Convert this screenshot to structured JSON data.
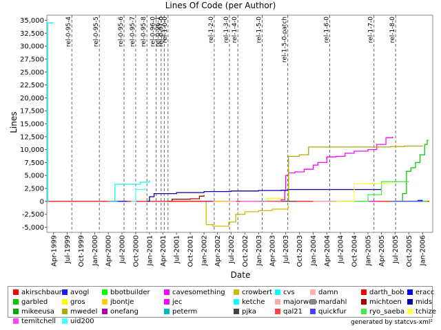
{
  "chart_data": {
    "type": "line",
    "title": "Lines Of Code (per Author)",
    "xlabel": "Date",
    "ylabel": "Lines",
    "ylim": [
      -6000,
      36000
    ],
    "xlim": [
      "1999-02-15",
      "2006-03-10"
    ],
    "y_ticks": [
      -5000,
      -2500,
      0,
      2500,
      5000,
      7500,
      10000,
      12500,
      15000,
      17500,
      20000,
      22500,
      25000,
      27500,
      30000,
      32500,
      35000
    ],
    "y_tick_labels": [
      "-5,000",
      "-2,500",
      "0",
      "2,500",
      "5,000",
      "7,500",
      "10,000",
      "12,500",
      "15,000",
      "17,500",
      "20,000",
      "22,500",
      "25,000",
      "27,500",
      "30,000",
      "32,500",
      "35,000"
    ],
    "x_ticks": [
      "1999-04-01",
      "1999-07-01",
      "1999-10-01",
      "2000-01-01",
      "2000-04-01",
      "2000-07-01",
      "2000-10-01",
      "2001-01-01",
      "2001-04-01",
      "2001-07-01",
      "2001-10-01",
      "2002-01-01",
      "2002-04-01",
      "2002-07-01",
      "2002-10-01",
      "2003-01-01",
      "2003-04-01",
      "2003-07-01",
      "2003-10-01",
      "2004-01-01",
      "2004-04-01",
      "2004-07-01",
      "2004-10-01",
      "2005-01-01",
      "2005-04-01",
      "2005-07-01",
      "2005-10-01",
      "2006-01-01"
    ],
    "x_tick_labels": [
      "Apr-1999",
      "Jul-1999",
      "Oct-1999",
      "Jan-2000",
      "Apr-2000",
      "Jul-2000",
      "Oct-2000",
      "Jan-2001",
      "Apr-2001",
      "Jul-2001",
      "Oct-2001",
      "Jan-2002",
      "Apr-2002",
      "Jul-2002",
      "Oct-2002",
      "Jan-2003",
      "Apr-2003",
      "Jul-2003",
      "Oct-2003",
      "Jan-2004",
      "Apr-2004",
      "Jul-2004",
      "Oct-2004",
      "Jan-2005",
      "Apr-2005",
      "Jul-2005",
      "Oct-2005",
      "Jan-2006"
    ],
    "releases": [
      {
        "date": "1999-08-01",
        "label": "rel-0-95-4"
      },
      {
        "date": "2000-02-01",
        "label": "rel-0-95-5"
      },
      {
        "date": "2000-07-15",
        "label": "rel-0-95-6"
      },
      {
        "date": "2000-10-01",
        "label": "rel-0-95-7"
      },
      {
        "date": "2000-12-15",
        "label": "rel-0-95-8"
      },
      {
        "date": "2001-02-15",
        "label": "rel-0-96-0"
      },
      {
        "date": "2001-03-20",
        "label": "rel-0-96-1"
      },
      {
        "date": "2001-04-10",
        "label": "rel-0-97-0"
      },
      {
        "date": "2001-05-05",
        "label": "rel-1-0-0"
      },
      {
        "date": "2002-03-10",
        "label": "rel-1-2-0"
      },
      {
        "date": "2002-06-20",
        "label": "rel-1-3-0"
      },
      {
        "date": "2002-08-15",
        "label": "rel-1-4-0"
      },
      {
        "date": "2003-01-25",
        "label": "rel-1-5-0"
      },
      {
        "date": "2003-07-15",
        "label": "rel-1-5-0-patch"
      },
      {
        "date": "2004-04-20",
        "label": "rel-1-6-0"
      },
      {
        "date": "2005-02-10",
        "label": "rel-1-7-0"
      },
      {
        "date": "2005-07-05",
        "label": "rel-1-8-0"
      }
    ],
    "grid": true,
    "legend_position": "bottom",
    "series": [
      {
        "name": "akirschbaum",
        "color": "#ff0000",
        "points": [
          [
            "1999-02-15",
            0
          ],
          [
            "2006-02-15",
            0
          ]
        ]
      },
      {
        "name": "avogl",
        "color": "#1a1aff",
        "points": [
          [
            "2005-08-01",
            0
          ],
          [
            "2005-12-01",
            200
          ],
          [
            "2006-01-01",
            200
          ]
        ]
      },
      {
        "name": "bbotbuilder",
        "color": "#00ff00",
        "points": [
          [
            "2005-06-01",
            0
          ],
          [
            "2006-02-01",
            0
          ]
        ]
      },
      {
        "name": "cavesomething",
        "color": "#ff00ff",
        "points": [
          [
            "2005-01-01",
            0
          ],
          [
            "2005-03-01",
            50
          ]
        ]
      },
      {
        "name": "crowbert",
        "color": "#ccbb00",
        "points": [
          [
            "2002-01-01",
            0
          ],
          [
            "2002-01-15",
            -4500
          ],
          [
            "2002-03-01",
            -4800
          ],
          [
            "2002-06-01",
            -4800
          ],
          [
            "2002-06-15",
            -4000
          ],
          [
            "2002-08-01",
            -2500
          ],
          [
            "2002-10-01",
            -2000
          ],
          [
            "2003-01-01",
            -1800
          ],
          [
            "2003-04-01",
            -1500
          ],
          [
            "2003-07-15",
            -1200
          ],
          [
            "2003-07-20",
            -900
          ]
        ]
      },
      {
        "name": "cvs",
        "color": "#00ffff",
        "points": [
          [
            "1999-02-20",
            0
          ],
          [
            "1999-02-22",
            34500
          ],
          [
            "1999-04-01",
            34500
          ]
        ]
      },
      {
        "name": "damn",
        "color": "#ffb0b0",
        "points": [
          [
            "2002-06-01",
            0
          ],
          [
            "2002-08-01",
            100
          ]
        ]
      },
      {
        "name": "darth_bob",
        "color": "#ff0000",
        "points": [
          [
            "2001-06-01",
            0
          ],
          [
            "2002-01-01",
            50
          ]
        ]
      },
      {
        "name": "eracc",
        "color": "#0000ff",
        "points": [
          [
            "2000-06-01",
            0
          ],
          [
            "2000-08-01",
            100
          ]
        ]
      },
      {
        "name": "garbled",
        "color": "#00cc00",
        "points": [
          [
            "2005-08-01",
            0
          ],
          [
            "2005-08-20",
            1500
          ],
          [
            "2005-09-15",
            5800
          ],
          [
            "2005-10-15",
            6500
          ],
          [
            "2005-11-15",
            7500
          ],
          [
            "2005-12-15",
            9000
          ],
          [
            "2006-01-15",
            11000
          ],
          [
            "2006-02-01",
            11800
          ],
          [
            "2006-02-10",
            11800
          ]
        ]
      },
      {
        "name": "gros",
        "color": "#ffff00",
        "points": [
          [
            "2002-09-01",
            0
          ],
          [
            "2003-03-01",
            600
          ],
          [
            "2003-07-01",
            600
          ]
        ]
      },
      {
        "name": "jbontje",
        "color": "#ffcc00",
        "points": [
          [
            "2002-01-01",
            0
          ],
          [
            "2002-06-01",
            0
          ]
        ]
      },
      {
        "name": "jec",
        "color": "#ff00ff",
        "points": [
          [
            "2003-01-01",
            0
          ],
          [
            "2003-06-01",
            300
          ],
          [
            "2003-06-25",
            2000
          ],
          [
            "2003-07-01",
            5000
          ],
          [
            "2003-07-20",
            5500
          ],
          [
            "2003-09-01",
            5700
          ],
          [
            "2003-11-01",
            6200
          ],
          [
            "2004-01-01",
            7000
          ],
          [
            "2004-02-01",
            7500
          ],
          [
            "2004-04-01",
            8600
          ],
          [
            "2004-06-01",
            8700
          ],
          [
            "2004-08-01",
            9300
          ],
          [
            "2004-10-01",
            9700
          ],
          [
            "2005-01-01",
            10000
          ],
          [
            "2005-03-01",
            11000
          ],
          [
            "2005-05-01",
            12300
          ],
          [
            "2005-06-15",
            12500
          ]
        ]
      },
      {
        "name": "ketche",
        "color": "#00ffff",
        "points": [
          [
            "2000-05-01",
            0
          ],
          [
            "2000-05-15",
            3300
          ],
          [
            "2000-09-01",
            3300
          ],
          [
            "2000-10-01",
            3300
          ],
          [
            "2000-11-01",
            3700
          ],
          [
            "2001-01-01",
            4100
          ]
        ]
      },
      {
        "name": "majorwoo",
        "color": "#ffaaaa",
        "points": [
          [
            "2004-01-01",
            0
          ],
          [
            "2004-06-01",
            50
          ]
        ]
      },
      {
        "name": "mardahl",
        "color": "#888888",
        "points": [
          [
            "2003-01-01",
            0
          ],
          [
            "2003-06-01",
            100
          ]
        ]
      },
      {
        "name": "michtoen",
        "color": "#aa0000",
        "points": [
          [
            "2001-05-01",
            0
          ],
          [
            "2001-06-01",
            400
          ],
          [
            "2001-10-01",
            500
          ],
          [
            "2001-12-01",
            1000
          ],
          [
            "2002-01-01",
            1200
          ]
        ]
      },
      {
        "name": "mids",
        "color": "#0000aa",
        "points": [
          [
            "2000-12-15",
            0
          ],
          [
            "2001-01-01",
            900
          ],
          [
            "2001-02-01",
            1500
          ],
          [
            "2001-07-01",
            1700
          ],
          [
            "2002-01-01",
            1900
          ],
          [
            "2002-07-01",
            2000
          ],
          [
            "2003-01-01",
            2100
          ],
          [
            "2003-06-01",
            2150
          ],
          [
            "2003-07-15",
            2300
          ],
          [
            "2004-06-01",
            2300
          ],
          [
            "2005-04-01",
            2300
          ]
        ]
      },
      {
        "name": "mikeeusa",
        "color": "#00aa00",
        "points": [
          [
            "2004-06-01",
            0
          ],
          [
            "2005-01-01",
            50
          ]
        ]
      },
      {
        "name": "mwedel",
        "color": "#aaaa00",
        "points": [
          [
            "2003-07-15",
            0
          ],
          [
            "2003-07-20",
            8700
          ],
          [
            "2003-10-01",
            9000
          ],
          [
            "2003-12-01",
            10500
          ],
          [
            "2004-06-01",
            10500
          ],
          [
            "2005-01-01",
            10500
          ],
          [
            "2005-06-01",
            10600
          ],
          [
            "2005-09-01",
            10700
          ],
          [
            "2006-01-01",
            10800
          ]
        ]
      },
      {
        "name": "onefang",
        "color": "#aa00aa",
        "points": [
          [
            "2002-01-01",
            0
          ],
          [
            "2002-03-01",
            50
          ]
        ]
      },
      {
        "name": "peterm",
        "color": "#00bbbb",
        "points": [
          [
            "2000-04-01",
            0
          ],
          [
            "2000-06-01",
            100
          ]
        ]
      },
      {
        "name": "pjka",
        "color": "#444444",
        "points": [
          [
            "2003-06-01",
            0
          ],
          [
            "2003-09-01",
            100
          ]
        ]
      },
      {
        "name": "qal21",
        "color": "#ff4444",
        "points": [
          [
            "2003-03-01",
            0
          ],
          [
            "2003-06-01",
            50
          ]
        ]
      },
      {
        "name": "quickfur",
        "color": "#4444ff",
        "points": [
          [
            "2005-06-01",
            0
          ],
          [
            "2006-01-01",
            150
          ]
        ]
      },
      {
        "name": "ryo_saeba",
        "color": "#44ee44",
        "points": [
          [
            "2004-09-01",
            0
          ],
          [
            "2005-01-01",
            1300
          ],
          [
            "2005-04-01",
            3800
          ],
          [
            "2005-10-01",
            3800
          ]
        ]
      },
      {
        "name": "tchize",
        "color": "#ffff44",
        "points": [
          [
            "2004-06-01",
            0
          ],
          [
            "2004-10-01",
            3400
          ],
          [
            "2005-06-01",
            3400
          ]
        ]
      },
      {
        "name": "temitchell",
        "color": "#ff44ff",
        "points": [
          [
            "2002-09-01",
            0
          ],
          [
            "2003-01-01",
            0
          ]
        ]
      },
      {
        "name": "uid200",
        "color": "#44ffff",
        "points": [
          [
            "2000-09-01",
            0
          ],
          [
            "2000-10-01",
            2300
          ],
          [
            "2000-12-01",
            2600
          ]
        ]
      }
    ]
  },
  "legend_items": [
    {
      "name": "akirschbaum",
      "color": "#ff0000"
    },
    {
      "name": "avogl",
      "color": "#1a1aff"
    },
    {
      "name": "bbotbuilder",
      "color": "#00ff00"
    },
    {
      "name": "cavesomething",
      "color": "#ff00ff"
    },
    {
      "name": "crowbert",
      "color": "#ccbb00"
    },
    {
      "name": "cvs",
      "color": "#00ffff"
    },
    {
      "name": "damn",
      "color": "#ffb0b0"
    },
    {
      "name": "darth_bob",
      "color": "#ff0000"
    },
    {
      "name": "eracc",
      "color": "#0000ff"
    },
    {
      "name": "garbled",
      "color": "#00cc00"
    },
    {
      "name": "gros",
      "color": "#ffff00"
    },
    {
      "name": "jbontje",
      "color": "#ffcc00"
    },
    {
      "name": "jec",
      "color": "#ff00ff"
    },
    {
      "name": "ketche",
      "color": "#00ffff"
    },
    {
      "name": "majorwoo",
      "color": "#ffaaaa"
    },
    {
      "name": "mardahl",
      "color": "#888888"
    },
    {
      "name": "michtoen",
      "color": "#aa0000"
    },
    {
      "name": "mids",
      "color": "#0000aa"
    },
    {
      "name": "mikeeusa",
      "color": "#00aa00"
    },
    {
      "name": "mwedel",
      "color": "#aaaa00"
    },
    {
      "name": "onefang",
      "color": "#aa00aa"
    },
    {
      "name": "peterm",
      "color": "#00bbbb"
    },
    {
      "name": "pjka",
      "color": "#444444"
    },
    {
      "name": "qal21",
      "color": "#ff4444"
    },
    {
      "name": "quickfur",
      "color": "#4444ff"
    },
    {
      "name": "ryo_saeba",
      "color": "#44ee44"
    },
    {
      "name": "tchize",
      "color": "#ffff44"
    },
    {
      "name": "temitchell",
      "color": "#ff44ff"
    },
    {
      "name": "uid200",
      "color": "#44ffff"
    }
  ],
  "credit": "generated by statcvs-xml²"
}
